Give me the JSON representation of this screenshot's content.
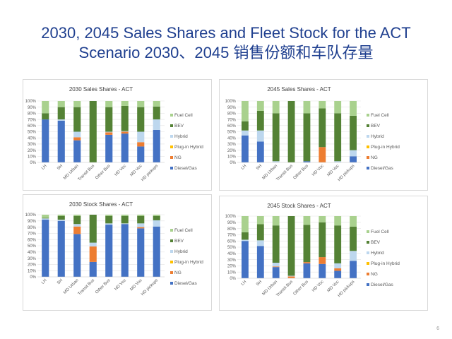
{
  "slide": {
    "title_line1": "2030, 2045 Sales Shares and Fleet Stock for the ACT",
    "title_line2": "Scenario 2030、2045 销售份额和车队存量",
    "page_number": "6"
  },
  "chart_data": [
    {
      "type": "bar",
      "stacked": true,
      "title": "2030 Sales Shares - ACT",
      "categories": [
        "LH",
        "SH",
        "MD Urban",
        "Transit Bus",
        "Other Bus",
        "HD Voc",
        "MD Voc",
        "HD pickups"
      ],
      "ylim": [
        0,
        100
      ],
      "yticks": [
        "0%",
        "10%",
        "20%",
        "30%",
        "40%",
        "50%",
        "60%",
        "70%",
        "80%",
        "90%",
        "100%"
      ],
      "grid": true,
      "legend": "right",
      "series": [
        {
          "name": "Diesel/Gas",
          "color": "#4472c4",
          "values": [
            70,
            68,
            36,
            0,
            45,
            47,
            26,
            53
          ]
        },
        {
          "name": "NG",
          "color": "#ed7d31",
          "values": [
            0,
            0,
            5,
            0,
            4,
            3,
            7,
            0
          ]
        },
        {
          "name": "Plug-in Hybrid",
          "color": "#ffc000",
          "values": [
            0,
            0,
            0,
            0,
            0,
            0,
            0,
            0
          ]
        },
        {
          "name": "Hybrid",
          "color": "#bdd7ee",
          "values": [
            0,
            2,
            9,
            0,
            1,
            1,
            17,
            17
          ]
        },
        {
          "name": "BEV",
          "color": "#548235",
          "values": [
            10,
            20,
            40,
            100,
            40,
            41,
            40,
            21
          ]
        },
        {
          "name": "Fuel Cell",
          "color": "#a9d18e",
          "values": [
            20,
            10,
            10,
            0,
            10,
            8,
            10,
            9
          ]
        }
      ]
    },
    {
      "type": "bar",
      "stacked": true,
      "title": "2045 Sales Shares - ACT",
      "categories": [
        "LH",
        "SH",
        "MD Urban",
        "Transit Bus",
        "Other Bus",
        "HD Voc",
        "MD Voc",
        "HD pickups"
      ],
      "ylim": [
        0,
        100
      ],
      "yticks": [
        "0%",
        "10%",
        "20%",
        "30%",
        "40%",
        "50%",
        "60%",
        "70%",
        "80%",
        "90%",
        "100%"
      ],
      "grid": true,
      "legend": "right",
      "series": [
        {
          "name": "Diesel/Gas",
          "color": "#4472c4",
          "values": [
            44,
            34,
            0,
            0,
            2,
            0,
            0,
            10
          ]
        },
        {
          "name": "NG",
          "color": "#ed7d31",
          "values": [
            0,
            0,
            0,
            0,
            0,
            25,
            0,
            0
          ]
        },
        {
          "name": "Plug-in Hybrid",
          "color": "#ffc000",
          "values": [
            0,
            0,
            0,
            0,
            0,
            0,
            0,
            0
          ]
        },
        {
          "name": "Hybrid",
          "color": "#bdd7ee",
          "values": [
            8,
            18,
            2,
            0,
            0,
            0,
            2,
            10
          ]
        },
        {
          "name": "BEV",
          "color": "#548235",
          "values": [
            15,
            32,
            78,
            100,
            78,
            63,
            78,
            56
          ]
        },
        {
          "name": "Fuel Cell",
          "color": "#a9d18e",
          "values": [
            33,
            16,
            20,
            0,
            20,
            12,
            20,
            24
          ]
        }
      ]
    },
    {
      "type": "bar",
      "stacked": true,
      "title": "2030 Stock Shares - ACT",
      "categories": [
        "LH",
        "SH",
        "MD Urban",
        "Transit Bus",
        "Other Bus",
        "HD Voc",
        "MD Voc",
        "HD pickups"
      ],
      "ylim": [
        0,
        100
      ],
      "yticks": [
        "0%",
        "10%",
        "20%",
        "30%",
        "40%",
        "50%",
        "60%",
        "70%",
        "80%",
        "90%",
        "100%"
      ],
      "grid": true,
      "legend": "right",
      "series": [
        {
          "name": "Diesel/Gas",
          "color": "#4472c4",
          "values": [
            92,
            90,
            69,
            24,
            84,
            85,
            78,
            81
          ]
        },
        {
          "name": "NG",
          "color": "#ed7d31",
          "values": [
            0,
            0,
            12,
            25,
            0,
            0,
            2,
            0
          ]
        },
        {
          "name": "Plug-in Hybrid",
          "color": "#ffc000",
          "values": [
            0,
            0,
            0,
            0,
            0,
            0,
            0,
            0
          ]
        },
        {
          "name": "Hybrid",
          "color": "#bdd7ee",
          "values": [
            2,
            2,
            4,
            6,
            2,
            1,
            6,
            10
          ]
        },
        {
          "name": "BEV",
          "color": "#548235",
          "values": [
            1,
            6,
            13,
            45,
            12,
            12,
            12,
            7
          ]
        },
        {
          "name": "Fuel Cell",
          "color": "#a9d18e",
          "values": [
            5,
            2,
            2,
            0,
            2,
            2,
            2,
            2
          ]
        }
      ]
    },
    {
      "type": "bar",
      "stacked": true,
      "title": "2045 Stock Shares - ACT",
      "categories": [
        "LH",
        "SH",
        "MD Urban",
        "Transit Bus",
        "Other Bus",
        "HD Voc",
        "MD Voc",
        "HD pickups"
      ],
      "ylim": [
        0,
        100
      ],
      "yticks": [
        "0%",
        "10%",
        "20%",
        "30%",
        "40%",
        "50%",
        "60%",
        "70%",
        "80%",
        "90%",
        "100%"
      ],
      "grid": true,
      "legend": "right",
      "series": [
        {
          "name": "Diesel/Gas",
          "color": "#4472c4",
          "values": [
            60,
            52,
            18,
            0,
            24,
            23,
            12,
            28
          ]
        },
        {
          "name": "NG",
          "color": "#ed7d31",
          "values": [
            0,
            0,
            1,
            3,
            2,
            11,
            4,
            0
          ]
        },
        {
          "name": "Plug-in Hybrid",
          "color": "#ffc000",
          "values": [
            0,
            0,
            0,
            0,
            0,
            0,
            0,
            0
          ]
        },
        {
          "name": "Hybrid",
          "color": "#bdd7ee",
          "values": [
            2,
            9,
            6,
            1,
            0,
            0,
            8,
            16
          ]
        },
        {
          "name": "BEV",
          "color": "#548235",
          "values": [
            12,
            26,
            60,
            96,
            60,
            56,
            61,
            39
          ]
        },
        {
          "name": "Fuel Cell",
          "color": "#a9d18e",
          "values": [
            26,
            13,
            15,
            0,
            14,
            10,
            15,
            17
          ]
        }
      ]
    }
  ]
}
